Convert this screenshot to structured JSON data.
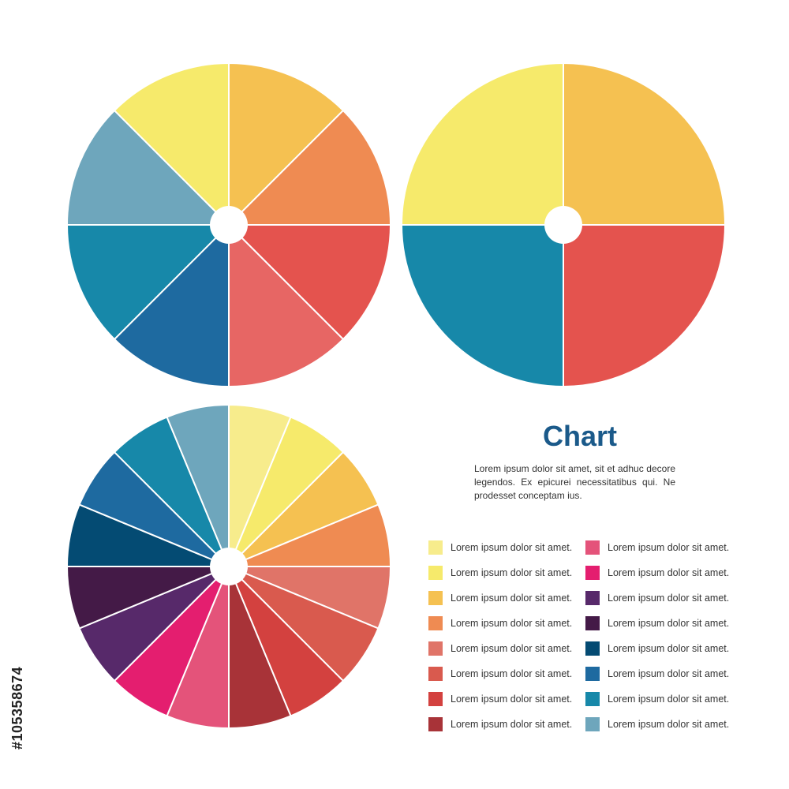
{
  "chart_data": [
    {
      "type": "pie",
      "donut_hole": true,
      "values": [
        1,
        1,
        1,
        1,
        1,
        1,
        1,
        1
      ],
      "colors": [
        "#f5c151",
        "#ef8b52",
        "#e4534e",
        "#e76664",
        "#1e6aa0",
        "#1788a9",
        "#6ea6bc",
        "#f6ea6b"
      ]
    },
    {
      "type": "pie",
      "donut_hole": true,
      "values": [
        1,
        1,
        1,
        1
      ],
      "colors": [
        "#f5c151",
        "#e4534e",
        "#1788a9",
        "#f6ea6b"
      ]
    },
    {
      "type": "pie",
      "donut_hole": true,
      "values": [
        1,
        1,
        1,
        1,
        1,
        1,
        1,
        1,
        1,
        1,
        1,
        1,
        1,
        1,
        1,
        1
      ],
      "colors": [
        "#f7ec8c",
        "#f6ea6b",
        "#f5c151",
        "#ef8b52",
        "#e07468",
        "#d95a4e",
        "#d3413f",
        "#a83338",
        "#e4537a",
        "#e41e6f",
        "#57296a",
        "#441a47",
        "#044b73",
        "#1e6aa0",
        "#1788a9",
        "#6ea6bc"
      ]
    }
  ],
  "title": "Chart",
  "description": "Lorem ipsum dolor sit amet, sit et adhuc decore legendos. Ex epicurei necessitatibus qui. Ne prodesset conceptam ius.",
  "legend_col1": [
    {
      "label": "Lorem ipsum dolor sit amet.",
      "color": "#f7ec8c"
    },
    {
      "label": "Lorem ipsum dolor sit amet.",
      "color": "#f6ea6b"
    },
    {
      "label": "Lorem ipsum dolor sit amet.",
      "color": "#f5c151"
    },
    {
      "label": "Lorem ipsum dolor sit amet.",
      "color": "#ef8b52"
    },
    {
      "label": "Lorem ipsum dolor sit amet.",
      "color": "#e07468"
    },
    {
      "label": "Lorem ipsum dolor sit amet.",
      "color": "#d95a4e"
    },
    {
      "label": "Lorem ipsum dolor sit amet.",
      "color": "#d3413f"
    },
    {
      "label": "Lorem ipsum dolor sit amet.",
      "color": "#a83338"
    }
  ],
  "legend_col2": [
    {
      "label": "Lorem ipsum dolor sit amet.",
      "color": "#e4537a"
    },
    {
      "label": "Lorem ipsum dolor sit amet.",
      "color": "#e41e6f"
    },
    {
      "label": "Lorem ipsum dolor sit amet.",
      "color": "#57296a"
    },
    {
      "label": "Lorem ipsum dolor sit amet.",
      "color": "#441a47"
    },
    {
      "label": "Lorem ipsum dolor sit amet.",
      "color": "#044b73"
    },
    {
      "label": "Lorem ipsum dolor sit amet.",
      "color": "#1e6aa0"
    },
    {
      "label": "Lorem ipsum dolor sit amet.",
      "color": "#1788a9"
    },
    {
      "label": "Lorem ipsum dolor sit amet.",
      "color": "#6ea6bc"
    }
  ],
  "side_text": "#105358674",
  "title_color": "#1b5a8a"
}
